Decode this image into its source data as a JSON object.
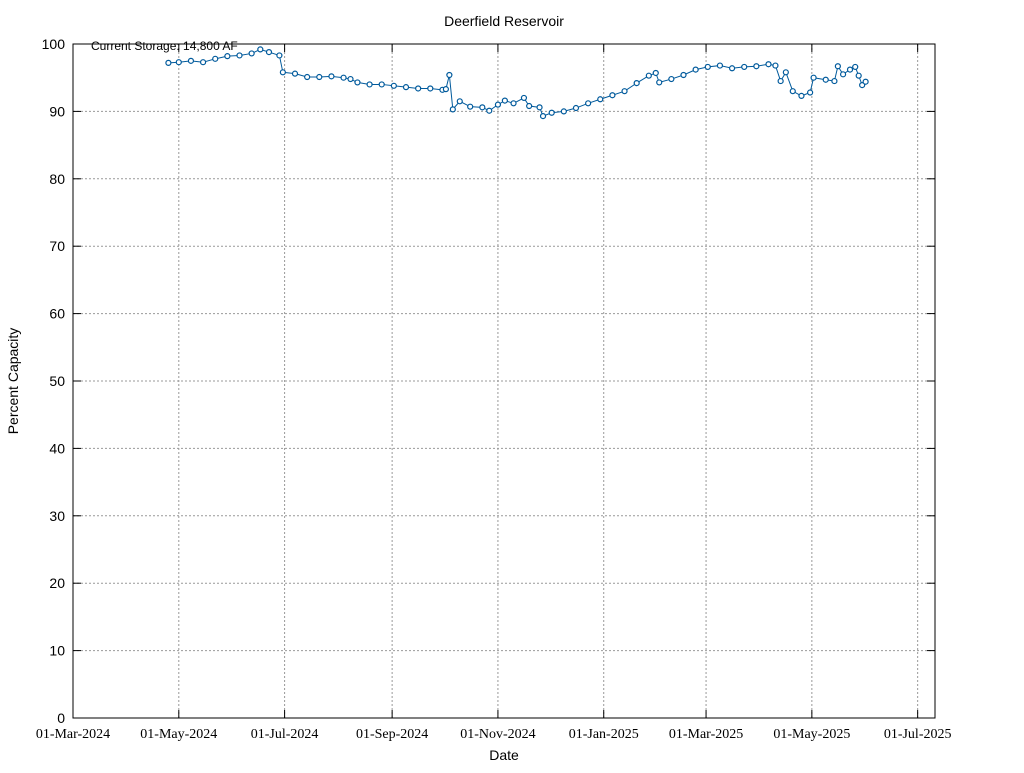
{
  "chart_data": {
    "type": "line",
    "title": "Deerfield Reservoir",
    "xlabel": "Date",
    "ylabel": "Percent Capacity",
    "annotation": "Current Storage: 14,800 AF",
    "color": "#005a9c",
    "grid": true,
    "xlim": [
      "2024-03-01",
      "2025-07-11"
    ],
    "ylim": [
      0,
      100
    ],
    "yticks": [
      0,
      10,
      20,
      30,
      40,
      50,
      60,
      70,
      80,
      90,
      100
    ],
    "xticks": [
      {
        "value": "2024-03-01",
        "label": "01-Mar-2024"
      },
      {
        "value": "2024-05-01",
        "label": "01-May-2024"
      },
      {
        "value": "2024-07-01",
        "label": "01-Jul-2024"
      },
      {
        "value": "2024-09-01",
        "label": "01-Sep-2024"
      },
      {
        "value": "2024-11-01",
        "label": "01-Nov-2024"
      },
      {
        "value": "2025-01-01",
        "label": "01-Jan-2025"
      },
      {
        "value": "2025-03-01",
        "label": "01-Mar-2025"
      },
      {
        "value": "2025-05-01",
        "label": "01-May-2025"
      },
      {
        "value": "2025-07-01",
        "label": "01-Jul-2025"
      }
    ],
    "x": [
      "2024-04-25",
      "2024-05-01",
      "2024-05-08",
      "2024-05-15",
      "2024-05-22",
      "2024-05-29",
      "2024-06-05",
      "2024-06-12",
      "2024-06-17",
      "2024-06-22",
      "2024-06-28",
      "2024-06-30",
      "2024-07-07",
      "2024-07-14",
      "2024-07-21",
      "2024-07-28",
      "2024-08-04",
      "2024-08-08",
      "2024-08-12",
      "2024-08-19",
      "2024-08-26",
      "2024-09-02",
      "2024-09-09",
      "2024-09-16",
      "2024-09-23",
      "2024-09-30",
      "2024-10-02",
      "2024-10-04",
      "2024-10-06",
      "2024-10-10",
      "2024-10-16",
      "2024-10-23",
      "2024-10-27",
      "2024-11-01",
      "2024-11-05",
      "2024-11-10",
      "2024-11-16",
      "2024-11-19",
      "2024-11-25",
      "2024-11-27",
      "2024-12-02",
      "2024-12-09",
      "2024-12-16",
      "2024-12-23",
      "2024-12-30",
      "2025-01-06",
      "2025-01-13",
      "2025-01-20",
      "2025-01-27",
      "2025-01-31",
      "2025-02-02",
      "2025-02-09",
      "2025-02-16",
      "2025-02-23",
      "2025-03-02",
      "2025-03-09",
      "2025-03-16",
      "2025-03-23",
      "2025-03-30",
      "2025-04-06",
      "2025-04-10",
      "2025-04-13",
      "2025-04-16",
      "2025-04-20",
      "2025-04-25",
      "2025-04-30",
      "2025-05-02",
      "2025-05-09",
      "2025-05-14",
      "2025-05-16",
      "2025-05-19",
      "2025-05-23",
      "2025-05-26",
      "2025-05-28",
      "2025-05-30",
      "2025-06-01"
    ],
    "values": [
      97.2,
      97.3,
      97.5,
      97.3,
      97.8,
      98.2,
      98.3,
      98.6,
      99.2,
      98.8,
      98.3,
      95.8,
      95.6,
      95.1,
      95.1,
      95.2,
      95.0,
      94.8,
      94.3,
      94.0,
      94.0,
      93.8,
      93.6,
      93.4,
      93.4,
      93.2,
      93.3,
      95.4,
      90.3,
      91.5,
      90.7,
      90.6,
      90.1,
      91.0,
      91.6,
      91.2,
      92.0,
      90.8,
      90.6,
      89.3,
      89.8,
      90.0,
      90.5,
      91.2,
      91.8,
      92.4,
      93.0,
      94.2,
      95.3,
      95.7,
      94.3,
      94.8,
      95.4,
      96.2,
      96.6,
      96.8,
      96.4,
      96.6,
      96.7,
      97.0,
      96.8,
      94.5,
      95.8,
      93.0,
      92.3,
      92.8,
      95.0,
      94.7,
      94.5,
      96.7,
      95.5,
      96.2,
      96.6,
      95.3,
      93.9,
      94.4
    ]
  }
}
